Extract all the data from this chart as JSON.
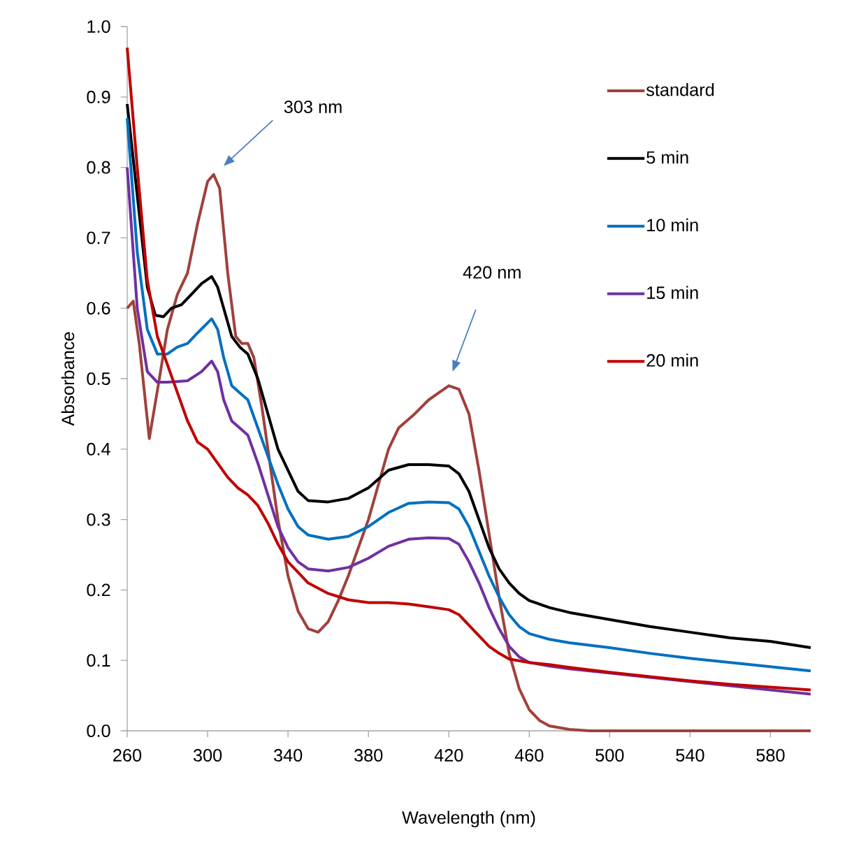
{
  "chart_data": {
    "type": "line",
    "xlabel": "Wavelength (nm)",
    "ylabel": "Absorbance",
    "xlim": [
      260,
      600
    ],
    "xticks": [
      260,
      300,
      340,
      380,
      420,
      460,
      500,
      540,
      580
    ],
    "ylim": [
      0,
      1.0
    ],
    "yticks": [
      {
        "value": 0,
        "label": "0.0"
      },
      0.1,
      0.2,
      0.3,
      0.4,
      0.5,
      0.6,
      0.7,
      0.8,
      0.9,
      {
        "value": 1.0,
        "label": "1.0"
      }
    ],
    "grid": false,
    "legend": "top right",
    "marker": "none",
    "line_style": "solid",
    "annotations": [
      "303 nm",
      "420 nm"
    ],
    "series": [
      {
        "name": "standard",
        "color": "#a0413c",
        "x": [
          260,
          263,
          266,
          271,
          276,
          280,
          285,
          290,
          295,
          300,
          303,
          306,
          310,
          314,
          317,
          320,
          323,
          327,
          331,
          335,
          340,
          345,
          350,
          355,
          360,
          365,
          370,
          375,
          380,
          385,
          390,
          395,
          403,
          410,
          415,
          420,
          425,
          430,
          435,
          440,
          445,
          450,
          455,
          460,
          465,
          470,
          480,
          490,
          600
        ],
        "values": [
          0.6,
          0.61,
          0.55,
          0.415,
          0.5,
          0.57,
          0.62,
          0.65,
          0.72,
          0.78,
          0.79,
          0.77,
          0.65,
          0.56,
          0.55,
          0.55,
          0.53,
          0.46,
          0.38,
          0.3,
          0.22,
          0.17,
          0.145,
          0.14,
          0.155,
          0.185,
          0.22,
          0.26,
          0.3,
          0.35,
          0.4,
          0.43,
          0.45,
          0.47,
          0.48,
          0.49,
          0.485,
          0.45,
          0.37,
          0.28,
          0.19,
          0.11,
          0.06,
          0.03,
          0.015,
          0.007,
          0.002,
          0,
          0
        ]
      },
      {
        "name": "5 min",
        "color": "#000000",
        "x": [
          260,
          265,
          270,
          274,
          278,
          282,
          287,
          292,
          297,
          302,
          305,
          308,
          312,
          316,
          320,
          325,
          330,
          335,
          340,
          345,
          350,
          360,
          370,
          380,
          390,
          400,
          410,
          420,
          425,
          430,
          435,
          440,
          445,
          450,
          455,
          460,
          470,
          480,
          500,
          520,
          540,
          560,
          580,
          600
        ],
        "values": [
          0.89,
          0.76,
          0.63,
          0.59,
          0.588,
          0.6,
          0.605,
          0.62,
          0.635,
          0.645,
          0.63,
          0.6,
          0.56,
          0.545,
          0.535,
          0.5,
          0.45,
          0.4,
          0.37,
          0.34,
          0.327,
          0.325,
          0.33,
          0.345,
          0.37,
          0.378,
          0.378,
          0.376,
          0.365,
          0.34,
          0.3,
          0.26,
          0.23,
          0.21,
          0.195,
          0.185,
          0.175,
          0.168,
          0.158,
          0.148,
          0.14,
          0.132,
          0.127,
          0.118
        ]
      },
      {
        "name": "10 min",
        "color": "#0070c0",
        "x": [
          260,
          265,
          270,
          275,
          280,
          285,
          290,
          295,
          302,
          305,
          308,
          312,
          316,
          320,
          325,
          330,
          335,
          340,
          345,
          350,
          360,
          370,
          380,
          390,
          400,
          410,
          420,
          425,
          430,
          435,
          440,
          445,
          450,
          455,
          460,
          470,
          480,
          500,
          520,
          540,
          560,
          580,
          600
        ],
        "values": [
          0.87,
          0.68,
          0.57,
          0.535,
          0.535,
          0.545,
          0.55,
          0.565,
          0.585,
          0.57,
          0.53,
          0.49,
          0.48,
          0.47,
          0.43,
          0.39,
          0.35,
          0.315,
          0.29,
          0.278,
          0.272,
          0.276,
          0.29,
          0.31,
          0.323,
          0.325,
          0.324,
          0.315,
          0.29,
          0.255,
          0.22,
          0.19,
          0.165,
          0.148,
          0.138,
          0.13,
          0.125,
          0.118,
          0.11,
          0.103,
          0.097,
          0.091,
          0.085
        ]
      },
      {
        "name": "15 min",
        "color": "#7030a0",
        "x": [
          260,
          265,
          270,
          275,
          280,
          290,
          297,
          302,
          305,
          308,
          312,
          316,
          320,
          325,
          330,
          335,
          340,
          345,
          350,
          360,
          370,
          380,
          390,
          400,
          410,
          420,
          425,
          430,
          435,
          440,
          445,
          450,
          455,
          460,
          470,
          480,
          500,
          520,
          540,
          560,
          580,
          600
        ],
        "values": [
          0.8,
          0.6,
          0.51,
          0.495,
          0.495,
          0.497,
          0.51,
          0.525,
          0.51,
          0.47,
          0.44,
          0.43,
          0.42,
          0.38,
          0.335,
          0.29,
          0.26,
          0.24,
          0.23,
          0.227,
          0.232,
          0.245,
          0.262,
          0.272,
          0.274,
          0.273,
          0.265,
          0.24,
          0.21,
          0.175,
          0.145,
          0.12,
          0.105,
          0.097,
          0.092,
          0.088,
          0.082,
          0.076,
          0.07,
          0.064,
          0.058,
          0.052
        ]
      },
      {
        "name": "20 min",
        "color": "#c00000",
        "x": [
          260,
          265,
          270,
          275,
          280,
          285,
          290,
          295,
          300,
          305,
          310,
          315,
          320,
          325,
          330,
          335,
          340,
          345,
          350,
          360,
          370,
          380,
          390,
          400,
          410,
          420,
          425,
          430,
          435,
          440,
          445,
          450,
          460,
          470,
          480,
          500,
          520,
          540,
          560,
          580,
          600
        ],
        "values": [
          0.97,
          0.8,
          0.64,
          0.56,
          0.52,
          0.48,
          0.44,
          0.41,
          0.4,
          0.38,
          0.36,
          0.345,
          0.335,
          0.32,
          0.295,
          0.265,
          0.24,
          0.225,
          0.21,
          0.195,
          0.186,
          0.182,
          0.182,
          0.18,
          0.176,
          0.172,
          0.165,
          0.15,
          0.135,
          0.12,
          0.11,
          0.102,
          0.097,
          0.094,
          0.09,
          0.083,
          0.077,
          0.071,
          0.066,
          0.062,
          0.058
        ]
      }
    ]
  }
}
